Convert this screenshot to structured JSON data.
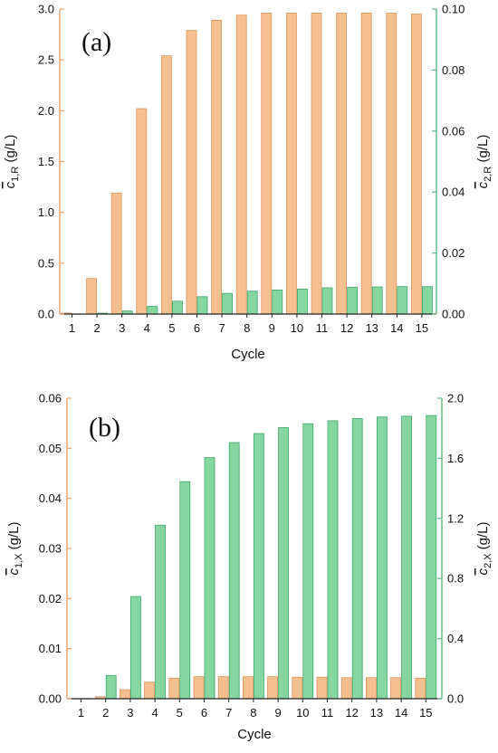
{
  "colors": {
    "orange": "#F5C090",
    "orange_stroke": "#D9955A",
    "green": "#86D6A0",
    "green_stroke": "#3FA76A",
    "left_axis": "#E2A36E",
    "right_axis": "#5CBB82",
    "text": "#111111"
  },
  "chart_data": [
    {
      "panel_label": "(a)",
      "type": "bar",
      "categories": [
        "1",
        "2",
        "3",
        "4",
        "5",
        "6",
        "7",
        "8",
        "9",
        "10",
        "11",
        "12",
        "13",
        "14",
        "15"
      ],
      "xlabel": "Cycle",
      "ylabel_left": {
        "base": "c",
        "sub": "1,R",
        "unit": " (g/L)"
      },
      "ylabel_right": {
        "base": "c",
        "sub": "2,R",
        "unit": " (g/L)"
      },
      "ylim_left": [
        0,
        3.0
      ],
      "ylim_right": [
        0,
        0.1
      ],
      "yticks_left": [
        "0.0",
        "0.5",
        "1.0",
        "1.5",
        "2.0",
        "2.5",
        "3.0"
      ],
      "yticks_right": [
        "0.00",
        "0.02",
        "0.04",
        "0.06",
        "0.08",
        "0.10"
      ],
      "series": [
        {
          "axis": "left",
          "color": "orange",
          "values": [
            0.01,
            0.35,
            1.19,
            2.02,
            2.54,
            2.79,
            2.89,
            2.94,
            2.96,
            2.96,
            2.96,
            2.96,
            2.96,
            2.96,
            2.95
          ]
        },
        {
          "axis": "right",
          "color": "green",
          "values": [
            0.0,
            0.0003,
            0.001,
            0.0025,
            0.0042,
            0.0057,
            0.0068,
            0.0075,
            0.0079,
            0.0082,
            0.0086,
            0.0088,
            0.0089,
            0.009,
            0.009
          ]
        }
      ],
      "grid": false
    },
    {
      "panel_label": "(b)",
      "type": "bar",
      "categories": [
        "1",
        "2",
        "3",
        "4",
        "5",
        "6",
        "7",
        "8",
        "9",
        "10",
        "11",
        "12",
        "13",
        "14",
        "15"
      ],
      "xlabel": "Cycle",
      "ylabel_left": {
        "base": "c",
        "sub": "1,X",
        "unit": " (g/L)"
      },
      "ylabel_right": {
        "base": "c",
        "sub": "2,X",
        "unit": " (g/L)"
      },
      "ylim_left": [
        0,
        0.06
      ],
      "ylim_right": [
        0,
        2.0
      ],
      "yticks_left": [
        "0.00",
        "0.01",
        "0.02",
        "0.03",
        "0.04",
        "0.05",
        "0.06"
      ],
      "yticks_right": [
        "0.0",
        "0.4",
        "0.8",
        "1.2",
        "1.6",
        "2.0"
      ],
      "series": [
        {
          "axis": "left",
          "color": "orange",
          "values": [
            0.0,
            0.0004,
            0.0018,
            0.0033,
            0.0041,
            0.0044,
            0.0044,
            0.0044,
            0.0044,
            0.0043,
            0.0043,
            0.0042,
            0.0042,
            0.0042,
            0.0041
          ]
        },
        {
          "axis": "right",
          "color": "green",
          "values": [
            0.0,
            0.155,
            0.68,
            1.155,
            1.445,
            1.605,
            1.705,
            1.765,
            1.805,
            1.83,
            1.85,
            1.865,
            1.875,
            1.88,
            1.885
          ]
        }
      ],
      "grid": false
    }
  ]
}
